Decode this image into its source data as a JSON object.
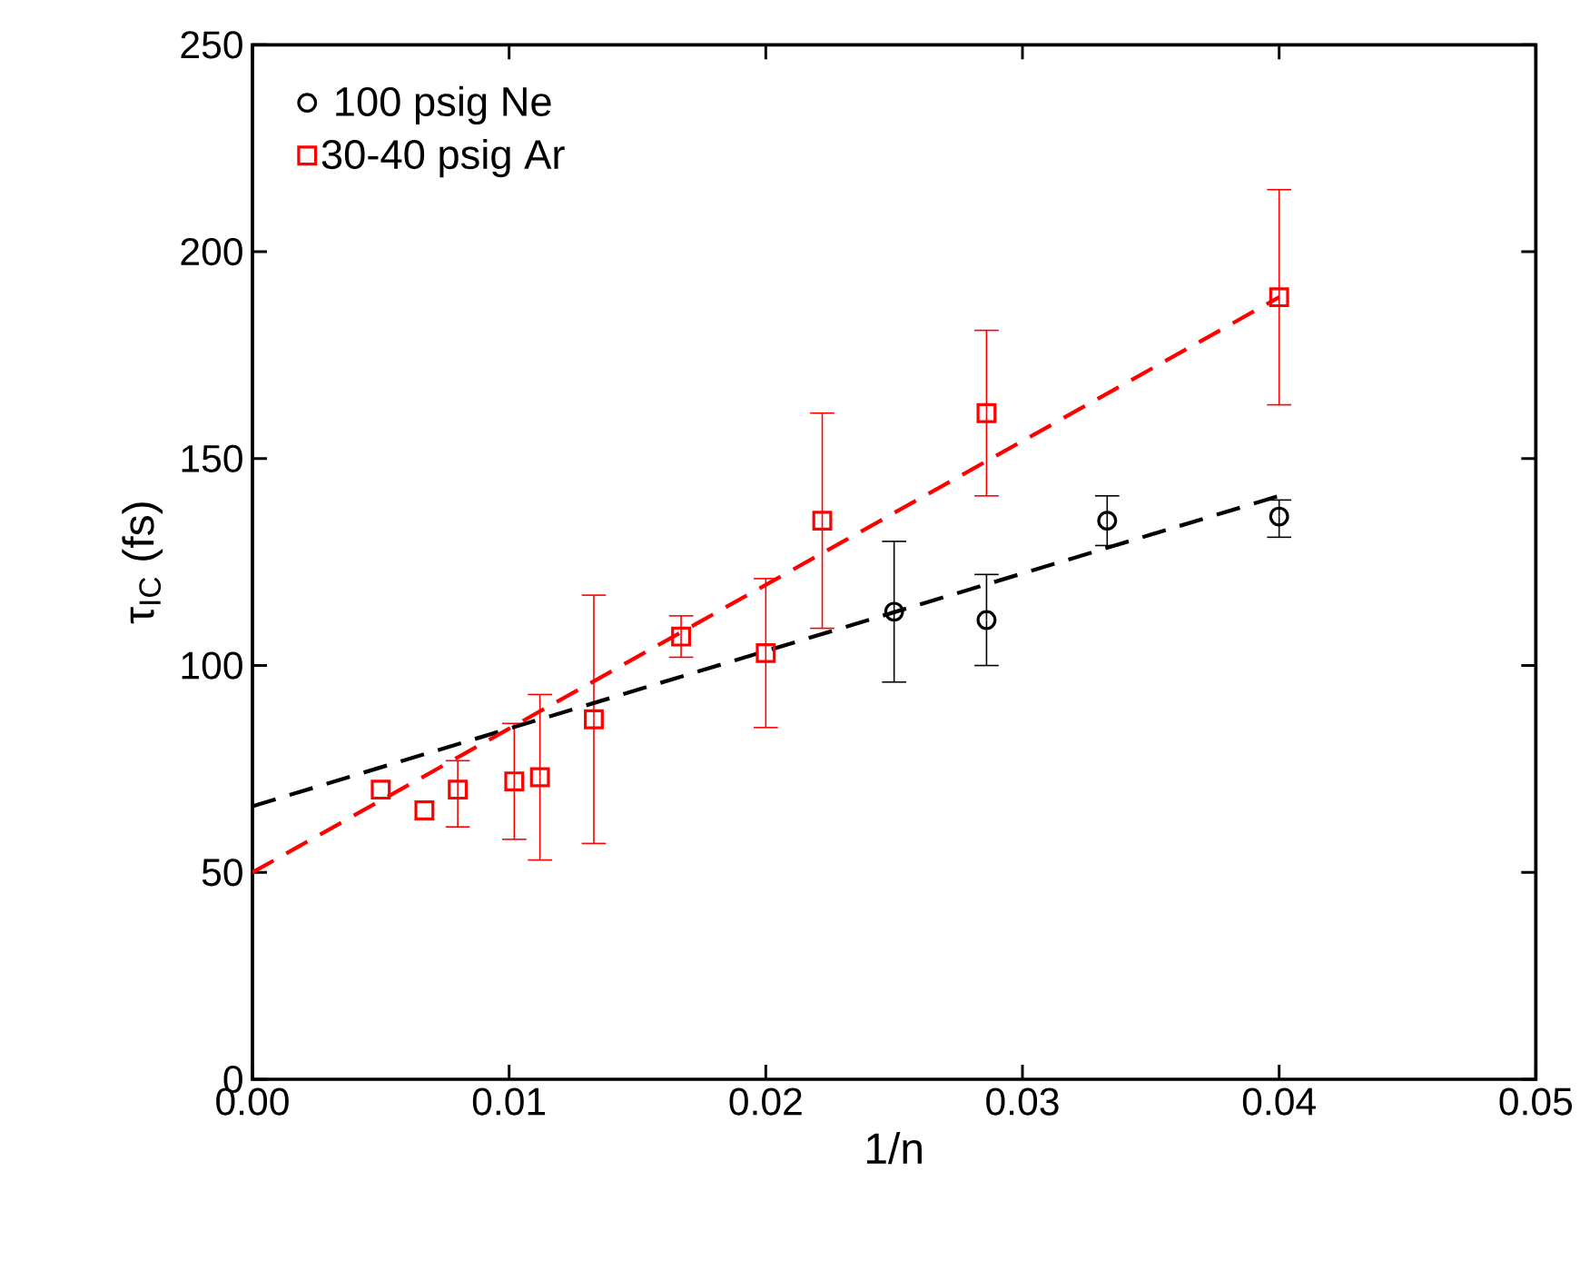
{
  "chart_data": {
    "type": "scatter",
    "xlabel": "1/n",
    "ylabel": "τ$_{IC}$ (fs)",
    "xlim": [
      0,
      0.05
    ],
    "ylim": [
      0,
      250
    ],
    "xticks": [
      {
        "value": 0,
        "label": "0.00"
      },
      {
        "value": 0.01,
        "label": "0.01"
      },
      {
        "value": 0.02,
        "label": "0.02"
      },
      {
        "value": 0.03,
        "label": "0.03"
      },
      {
        "value": 0.04,
        "label": "0.04"
      },
      {
        "value": 0.05,
        "label": "0.05"
      }
    ],
    "yticks": [
      0,
      50,
      100,
      150,
      200,
      250
    ],
    "grid": false,
    "legend": "top left",
    "series": [
      {
        "name": "100 psig Ne",
        "color": "#000000",
        "marker": "circle",
        "x": [
          0.025,
          0.0286,
          0.0333,
          0.04
        ],
        "values": [
          113,
          111,
          135,
          136
        ],
        "errors": [
          [
            96,
            130
          ],
          [
            100,
            122
          ],
          [
            129,
            141
          ],
          [
            131,
            140
          ]
        ]
      },
      {
        "name": "30-40 psig Ar",
        "color": "#ff0000",
        "marker": "square",
        "x": [
          0.005,
          0.0067,
          0.008,
          0.0102,
          0.0112,
          0.0133,
          0.0167,
          0.02,
          0.0222,
          0.0286,
          0.04
        ],
        "values": [
          70,
          65,
          70,
          72,
          73,
          87,
          107,
          103,
          135,
          161,
          189
        ],
        "errors": [
          null,
          null,
          [
            61,
            77
          ],
          [
            58,
            86
          ],
          [
            53,
            93
          ],
          [
            57,
            117
          ],
          [
            102,
            112
          ],
          [
            85,
            121
          ],
          [
            109,
            161
          ],
          [
            141,
            181
          ],
          [
            163,
            215
          ]
        ]
      },
      {
        "type": "line",
        "color": "#000000",
        "line_style": "dashed",
        "marker": "none",
        "x": [
          0,
          0.04
        ],
        "values": [
          66,
          141
        ]
      },
      {
        "type": "line",
        "color": "#ff0000",
        "line_style": "dashed",
        "marker": "none",
        "x": [
          0,
          0.04
        ],
        "values": [
          50,
          189
        ]
      }
    ]
  }
}
